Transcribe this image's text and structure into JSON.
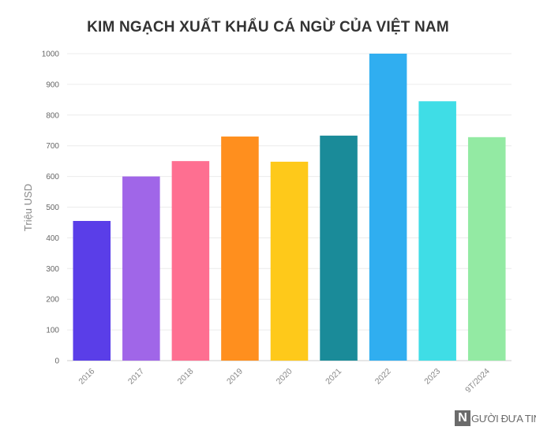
{
  "chart_data": {
    "type": "bar",
    "title": "KIM NGẠCH XUẤT KHẨU CÁ NGỪ CỦA VIỆT NAM",
    "xlabel": "",
    "ylabel": "Triệu USD",
    "categories": [
      "2016",
      "2017",
      "2018",
      "2019",
      "2020",
      "2021",
      "2022",
      "2023",
      "9T/2024"
    ],
    "values": [
      455,
      600,
      650,
      730,
      648,
      733,
      1000,
      845,
      728
    ],
    "colors": [
      "#5a3ee8",
      "#a066e8",
      "#fe6f91",
      "#ff8f1e",
      "#fec91a",
      "#1a8b99",
      "#30aef0",
      "#3fdde6",
      "#93eaa3"
    ],
    "ylim": [
      0,
      1000
    ],
    "yticks": [
      0,
      100,
      200,
      300,
      400,
      500,
      600,
      700,
      800,
      900,
      1000
    ],
    "grid": true,
    "legend": "none"
  },
  "watermark": {
    "letter": "N",
    "text": "GƯỜI ĐƯA TIN"
  }
}
